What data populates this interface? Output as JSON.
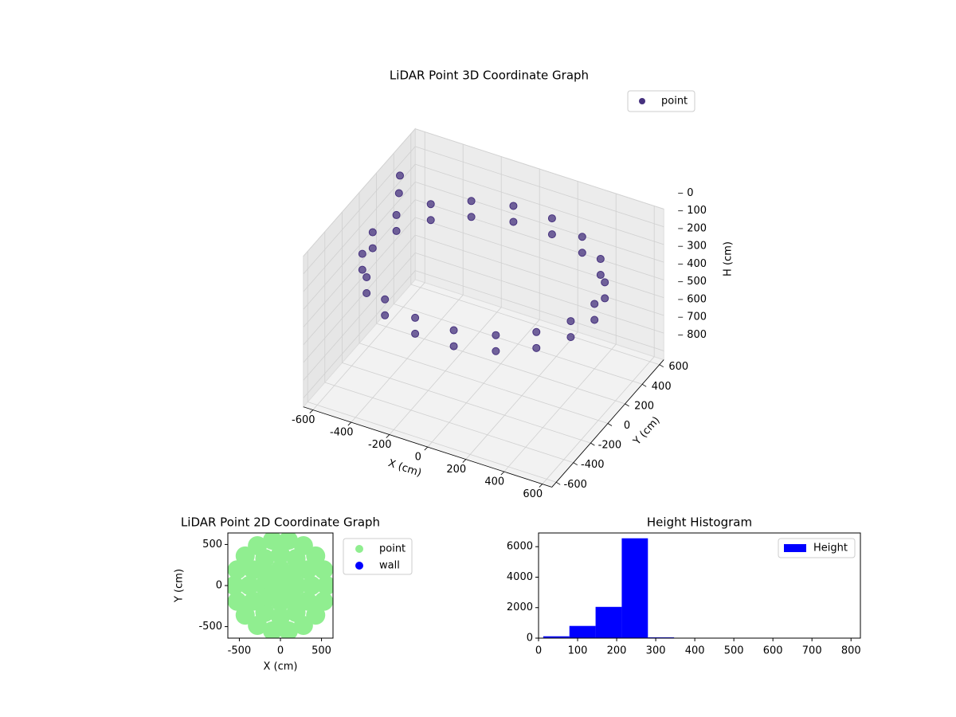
{
  "chart_data": [
    {
      "type": "scatter3d",
      "title": "LiDAR Point 3D Coordinate Graph",
      "x_label": "X (cm)",
      "y_label": "Y (cm)",
      "z_label": "H (cm)",
      "xlim": [
        -650,
        650
      ],
      "ylim": [
        -650,
        650
      ],
      "zlim": [
        0,
        850
      ],
      "z_inverted": true,
      "xticks": [
        -600,
        -400,
        -200,
        0,
        200,
        400,
        600
      ],
      "yticks": [
        -600,
        -400,
        -200,
        0,
        200,
        400,
        600
      ],
      "zticks": [
        0,
        100,
        200,
        300,
        400,
        500,
        600,
        700,
        800
      ],
      "grid": true,
      "legend_loc": "upper right",
      "series": [
        {
          "name": "point",
          "color": "#46317e",
          "x": [
            580,
            545,
            444,
            290,
            101,
            -101,
            -290,
            -444,
            -545,
            -580,
            -545,
            -444,
            -290,
            -101,
            101,
            290,
            444,
            545,
            580,
            545,
            444,
            290,
            101,
            -101,
            -290,
            -444,
            -545,
            -580,
            -545,
            -444,
            -290,
            -101,
            101,
            290,
            444,
            545,
            -640,
            -600
          ],
          "y": [
            0,
            198,
            373,
            502,
            571,
            571,
            502,
            373,
            198,
            0,
            -198,
            -373,
            -502,
            -571,
            -571,
            -502,
            -373,
            -198,
            0,
            198,
            373,
            502,
            571,
            571,
            502,
            373,
            198,
            0,
            -198,
            -373,
            -502,
            -571,
            -571,
            -502,
            -373,
            -198,
            450,
            350
          ],
          "z": [
            200,
            200,
            200,
            200,
            200,
            200,
            200,
            200,
            200,
            200,
            200,
            200,
            200,
            200,
            200,
            200,
            200,
            200,
            290,
            290,
            290,
            290,
            290,
            290,
            290,
            290,
            290,
            290,
            290,
            290,
            290,
            290,
            290,
            290,
            290,
            290,
            150,
            180
          ]
        }
      ]
    },
    {
      "type": "scatter",
      "title": "LiDAR Point 2D Coordinate Graph",
      "x_label": "X (cm)",
      "y_label": "Y (cm)",
      "xlim": [
        -640,
        640
      ],
      "ylim": [
        -640,
        640
      ],
      "xticks": [
        -500,
        0,
        500
      ],
      "yticks": [
        -500,
        0,
        500
      ],
      "legend_loc": "outside upper right",
      "series": [
        {
          "name": "point",
          "color": "#90ee90",
          "x": [
            560,
            526,
            429,
            280,
            97,
            -97,
            -280,
            -429,
            -526,
            -560,
            -526,
            -429,
            -280,
            -97,
            97,
            280,
            429,
            526,
            380,
            329,
            190,
            0,
            -190,
            -329,
            -380,
            -329,
            -190,
            0,
            190,
            329,
            200,
            141,
            0,
            -141,
            -200,
            -141,
            0,
            141,
            0
          ],
          "y": [
            0,
            192,
            360,
            485,
            551,
            551,
            485,
            360,
            192,
            0,
            -192,
            -360,
            -485,
            -551,
            -551,
            -485,
            -360,
            -192,
            0,
            190,
            329,
            380,
            329,
            190,
            0,
            -190,
            -329,
            -380,
            -329,
            -190,
            0,
            141,
            200,
            141,
            0,
            -141,
            -200,
            -141,
            0
          ]
        },
        {
          "name": "wall",
          "color": "#0000ff",
          "x": [],
          "y": []
        }
      ]
    },
    {
      "type": "histogram",
      "title": "Height Histogram",
      "legend_loc": "upper right",
      "bins": [
        12,
        79,
        146,
        213,
        280,
        347,
        414,
        481,
        548,
        615,
        682,
        749,
        816
      ],
      "series": [
        {
          "name": "Height",
          "color": "#0000ff",
          "values": [
            120,
            800,
            2050,
            6550,
            50,
            10,
            5,
            5,
            3,
            2,
            2,
            2
          ]
        }
      ],
      "xlim": [
        0,
        824
      ],
      "ylim": [
        0,
        6900
      ],
      "xticks": [
        0,
        100,
        200,
        300,
        400,
        500,
        600,
        700,
        800
      ],
      "yticks": [
        0,
        2000,
        4000,
        6000
      ]
    }
  ]
}
